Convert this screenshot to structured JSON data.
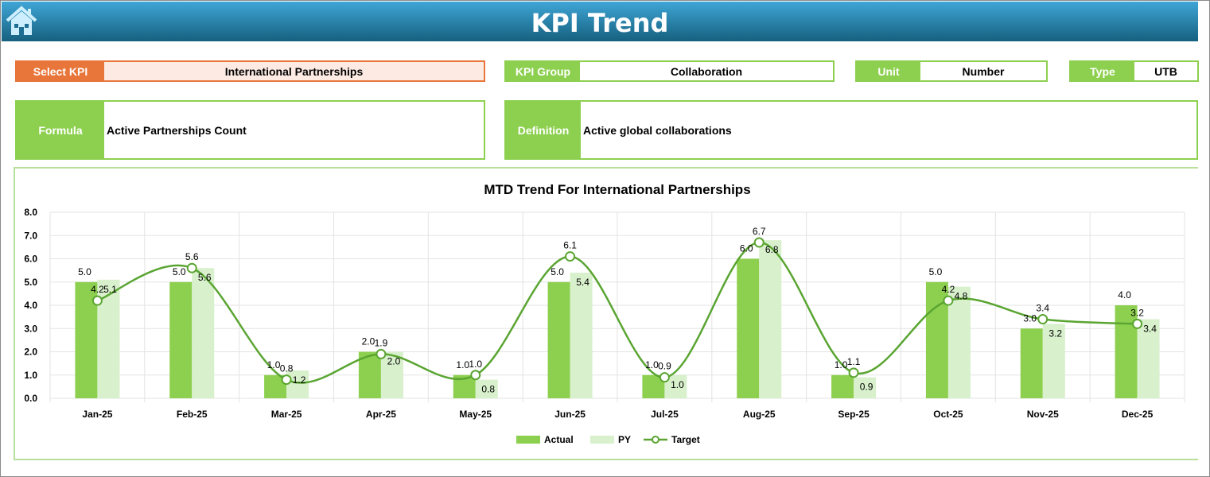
{
  "header": {
    "title": "KPI Trend",
    "home_icon": "home-icon"
  },
  "fields": {
    "select_kpi": {
      "label": "Select KPI",
      "value": "International Partnerships"
    },
    "kpi_group": {
      "label": "KPI Group",
      "value": "Collaboration"
    },
    "unit": {
      "label": "Unit",
      "value": "Number"
    },
    "type": {
      "label": "Type",
      "value": "UTB"
    },
    "formula": {
      "label": "Formula",
      "value": "Active Partnerships Count"
    },
    "definition": {
      "label": "Definition",
      "value": "Active global collaborations"
    }
  },
  "colors": {
    "actual": "#8dd04f",
    "py": "#d8f0cc",
    "target": "#5aa532",
    "accent_orange": "#e8753a"
  },
  "chart_data": {
    "type": "bar",
    "title": "MTD Trend For International Partnerships",
    "categories": [
      "Jan-25",
      "Feb-25",
      "Mar-25",
      "Apr-25",
      "May-25",
      "Jun-25",
      "Jul-25",
      "Aug-25",
      "Sep-25",
      "Oct-25",
      "Nov-25",
      "Dec-25"
    ],
    "ylim": [
      0,
      8
    ],
    "yticks": [
      "0.0",
      "1.0",
      "2.0",
      "3.0",
      "4.0",
      "5.0",
      "6.0",
      "7.0",
      "8.0"
    ],
    "grid": true,
    "legend_position": "bottom",
    "series": [
      {
        "name": "Actual",
        "type": "bar",
        "values": [
          5.0,
          5.0,
          1.0,
          2.0,
          1.0,
          5.0,
          1.0,
          6.0,
          1.0,
          5.0,
          3.0,
          4.0
        ]
      },
      {
        "name": "PY",
        "type": "bar",
        "values": [
          5.1,
          5.6,
          1.2,
          2.0,
          0.8,
          5.4,
          1.0,
          6.8,
          0.9,
          4.8,
          3.2,
          3.4
        ]
      },
      {
        "name": "Target",
        "type": "line",
        "values": [
          4.2,
          5.6,
          0.8,
          1.9,
          1.0,
          6.1,
          0.9,
          6.7,
          1.1,
          4.2,
          3.4,
          3.2
        ]
      }
    ]
  }
}
